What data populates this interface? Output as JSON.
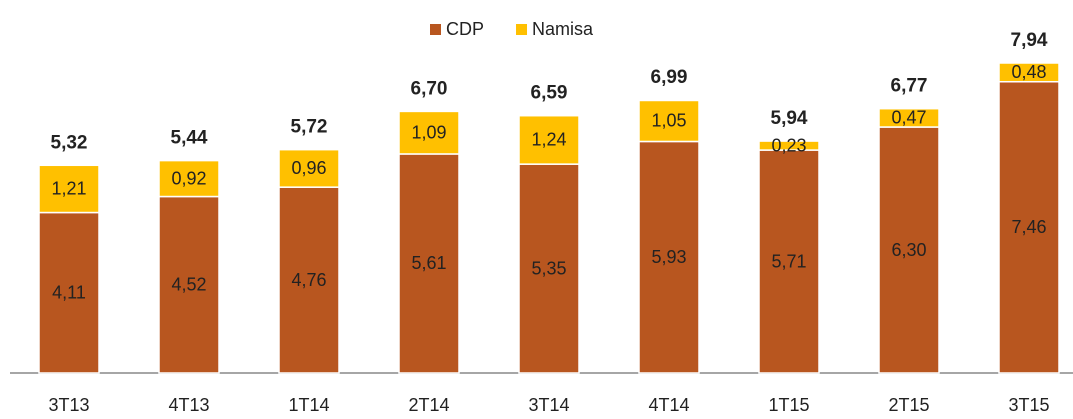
{
  "chart_data": {
    "type": "stacked_bar",
    "categories": [
      "3T13",
      "4T13",
      "1T14",
      "2T14",
      "3T14",
      "4T14",
      "1T15",
      "2T15",
      "3T15"
    ],
    "series": [
      {
        "name": "CDP",
        "color": "#b8561f",
        "values": [
          4.11,
          4.52,
          4.76,
          5.61,
          5.35,
          5.93,
          5.71,
          6.3,
          7.46
        ],
        "value_labels": [
          "4,11",
          "4,52",
          "4,76",
          "5,61",
          "5,35",
          "5,93",
          "5,71",
          "6,30",
          "7,46"
        ]
      },
      {
        "name": "Namisa",
        "color": "#ffc000",
        "values": [
          1.21,
          0.92,
          0.96,
          1.09,
          1.24,
          1.05,
          0.23,
          0.47,
          0.48
        ],
        "value_labels": [
          "1,21",
          "0,92",
          "0,96",
          "1,09",
          "1,24",
          "1,05",
          "0,23",
          "0,47",
          "0,48"
        ]
      }
    ],
    "totals": [
      5.32,
      5.44,
      5.72,
      6.7,
      6.59,
      6.99,
      5.94,
      6.77,
      7.94
    ],
    "total_labels": [
      "5,32",
      "5,44",
      "5,72",
      "6,70",
      "6,59",
      "6,99",
      "5,94",
      "6,77",
      "7,94"
    ],
    "legend": "top"
  }
}
